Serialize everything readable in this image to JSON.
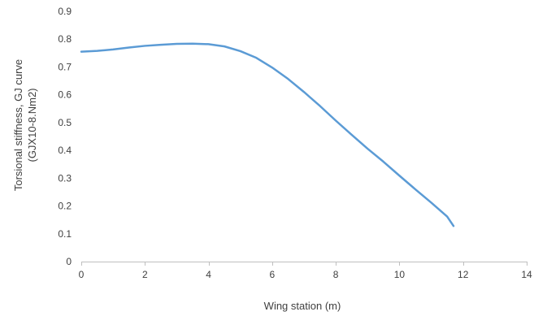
{
  "chart_data": {
    "type": "line",
    "title": "",
    "xlabel": "Wing station (m)",
    "ylabel_lines": [
      "Torsional stiffness, GJ curve",
      "(GJX10-8.Nm2)"
    ],
    "xlim": [
      0,
      14
    ],
    "ylim": [
      0,
      0.9
    ],
    "x_ticks": [
      0,
      2,
      4,
      6,
      8,
      10,
      12,
      14
    ],
    "y_ticks": [
      0,
      0.1,
      0.2,
      0.3,
      0.4,
      0.5,
      0.6,
      0.7,
      0.8,
      0.9
    ],
    "x_tick_labels": [
      "0",
      "2",
      "4",
      "6",
      "8",
      "10",
      "12",
      "14"
    ],
    "y_tick_labels": [
      "0",
      "0.1",
      "0.2",
      "0.3",
      "0.4",
      "0.5",
      "0.6",
      "0.7",
      "0.8",
      "0.9"
    ],
    "grid": false,
    "legend": "none",
    "series": [
      {
        "color": "#5b9bd5",
        "x": [
          0,
          0.5,
          1,
          1.5,
          2,
          2.5,
          3,
          3.5,
          4,
          4.5,
          5,
          5.5,
          6,
          6.5,
          7,
          7.5,
          8,
          8.5,
          9,
          9.5,
          10,
          10.5,
          11,
          11.5,
          11.7
        ],
        "y": [
          0.755,
          0.758,
          0.763,
          0.77,
          0.776,
          0.78,
          0.783,
          0.784,
          0.782,
          0.774,
          0.757,
          0.733,
          0.698,
          0.657,
          0.61,
          0.56,
          0.507,
          0.456,
          0.406,
          0.359,
          0.309,
          0.26,
          0.212,
          0.162,
          0.128
        ]
      }
    ]
  }
}
